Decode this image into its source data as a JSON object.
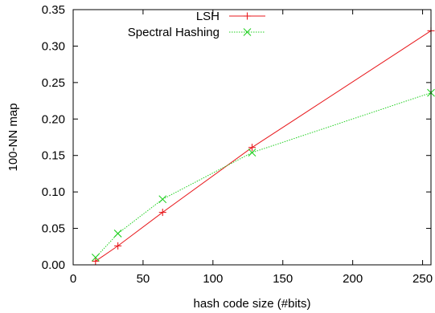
{
  "chart_data": {
    "type": "line",
    "title": "",
    "xlabel": "hash code size (#bits)",
    "ylabel": "100-NN map",
    "xlim": [
      0,
      256
    ],
    "ylim": [
      0,
      0.35
    ],
    "x_ticks": [
      0,
      50,
      100,
      150,
      200,
      250
    ],
    "x_tick_labels": [
      "0",
      "50",
      "100",
      "150",
      "200",
      "250"
    ],
    "y_ticks": [
      0,
      0.05,
      0.1,
      0.15,
      0.2,
      0.25,
      0.3,
      0.35
    ],
    "y_tick_labels": [
      "0.00",
      "0.05",
      "0.10",
      "0.15",
      "0.20",
      "0.25",
      "0.30",
      "0.35"
    ],
    "grid": false,
    "legend_position": "top-right",
    "series": [
      {
        "name": "LSH",
        "color": "#e8191d",
        "marker": "plus",
        "line_style": "solid",
        "x": [
          16,
          32,
          64,
          128,
          256
        ],
        "y": [
          0.005,
          0.026,
          0.072,
          0.161,
          0.321
        ]
      },
      {
        "name": "Spectral Hashing",
        "color": "#22d022",
        "marker": "cross",
        "line_style": "dotted",
        "x": [
          16,
          32,
          64,
          128,
          256
        ],
        "y": [
          0.01,
          0.043,
          0.09,
          0.154,
          0.236
        ]
      }
    ]
  }
}
